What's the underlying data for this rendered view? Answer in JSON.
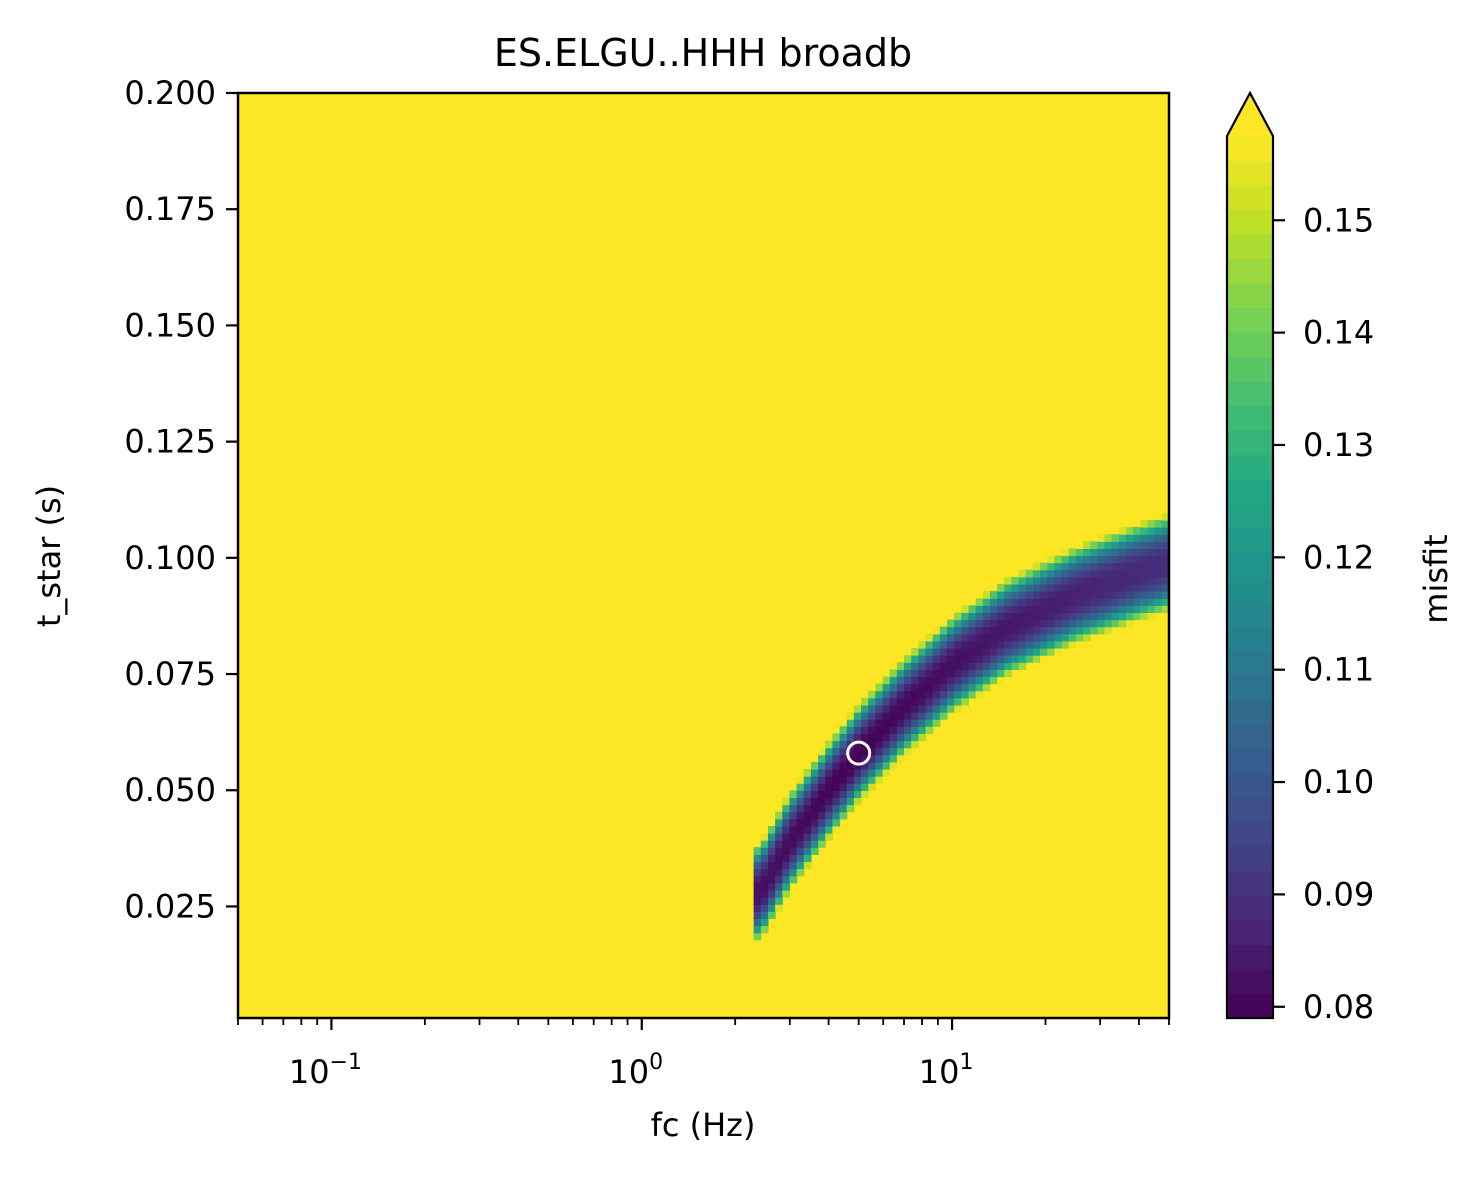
{
  "chart_data": {
    "type": "heatmap",
    "title": "ES.ELGU..HHH broadb",
    "xlabel": "fc (Hz)",
    "ylabel": "t_star (s)",
    "xscale": "log",
    "xlim": [
      0.05,
      50
    ],
    "ylim": [
      0.001,
      0.2
    ],
    "xticks": [
      {
        "value": 0.1,
        "base": "10",
        "exp": "−1"
      },
      {
        "value": 1,
        "base": "10",
        "exp": "0"
      },
      {
        "value": 10,
        "base": "10",
        "exp": "1"
      }
    ],
    "yticks": [
      {
        "value": 0.025,
        "label": "0.025"
      },
      {
        "value": 0.05,
        "label": "0.050"
      },
      {
        "value": 0.075,
        "label": "0.075"
      },
      {
        "value": 0.1,
        "label": "0.100"
      },
      {
        "value": 0.125,
        "label": "0.125"
      },
      {
        "value": 0.15,
        "label": "0.150"
      },
      {
        "value": 0.175,
        "label": "0.175"
      },
      {
        "value": 0.2,
        "label": "0.200"
      }
    ],
    "colorbar": {
      "label": "misfit",
      "colormap": "viridis",
      "vmin": 0.079,
      "vmax": 0.1575,
      "extend": "max",
      "ticks": [
        {
          "value": 0.08,
          "label": "0.08"
        },
        {
          "value": 0.09,
          "label": "0.09"
        },
        {
          "value": 0.1,
          "label": "0.10"
        },
        {
          "value": 0.11,
          "label": "0.11"
        },
        {
          "value": 0.12,
          "label": "0.12"
        },
        {
          "value": 0.13,
          "label": "0.13"
        },
        {
          "value": 0.14,
          "label": "0.14"
        },
        {
          "value": 0.15,
          "label": "0.15"
        }
      ]
    },
    "valley_ridge": [
      {
        "fc": 2.4,
        "t_star": 0.028
      },
      {
        "fc": 3.0,
        "t_star": 0.039
      },
      {
        "fc": 4.0,
        "t_star": 0.05
      },
      {
        "fc": 5.0,
        "t_star": 0.058
      },
      {
        "fc": 7.0,
        "t_star": 0.068
      },
      {
        "fc": 10.0,
        "t_star": 0.077
      },
      {
        "fc": 15.0,
        "t_star": 0.085
      },
      {
        "fc": 25.0,
        "t_star": 0.092
      },
      {
        "fc": 40.0,
        "t_star": 0.097
      },
      {
        "fc": 50.0,
        "t_star": 0.099
      }
    ],
    "best_fit": {
      "fc": 5.0,
      "t_star": 0.058,
      "misfit": 0.079
    },
    "colors": {
      "background": "#fde725",
      "marker_stroke": "#ffffff"
    }
  }
}
